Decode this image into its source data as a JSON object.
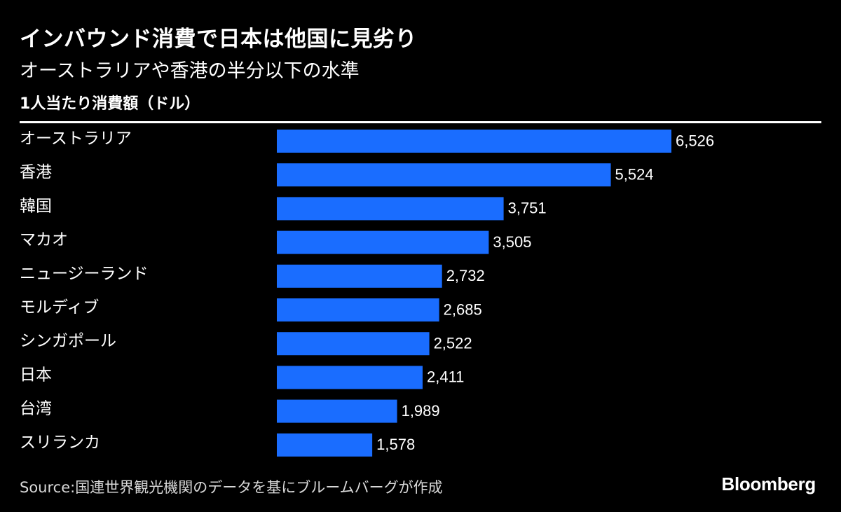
{
  "header": {
    "title": "インバウンド消費で日本は他国に見劣り",
    "subtitle": "オーストラリアや香港の半分以下の水準",
    "unit_label": "1人当たり消費額（ドル）"
  },
  "footer": {
    "source": "Source:国連世界観光機関のデータを基にブルームバーグが作成",
    "brand": "Bloomberg"
  },
  "colors": {
    "background": "#000000",
    "bar": "#1a6dff",
    "text": "#ffffff"
  },
  "chart_data": {
    "type": "bar",
    "orientation": "horizontal",
    "title": "インバウンド消費で日本は他国に見劣り",
    "subtitle": "オーストラリアや香港の半分以下の水準",
    "ylabel": "1人当たり消費額（ドル）",
    "categories": [
      "オーストラリア",
      "香港",
      "韓国",
      "マカオ",
      "ニュージーランド",
      "モルディブ",
      "シンガポール",
      "日本",
      "台湾",
      "スリランカ"
    ],
    "values": [
      6526,
      5524,
      3751,
      3505,
      2732,
      2685,
      2522,
      2411,
      1989,
      1578
    ],
    "value_labels": [
      "6,526",
      "5,524",
      "3,751",
      "3,505",
      "2,732",
      "2,685",
      "2,522",
      "2,411",
      "1,989",
      "1,578"
    ],
    "xlim": [
      0,
      6526
    ],
    "grid": false,
    "legend": false
  }
}
